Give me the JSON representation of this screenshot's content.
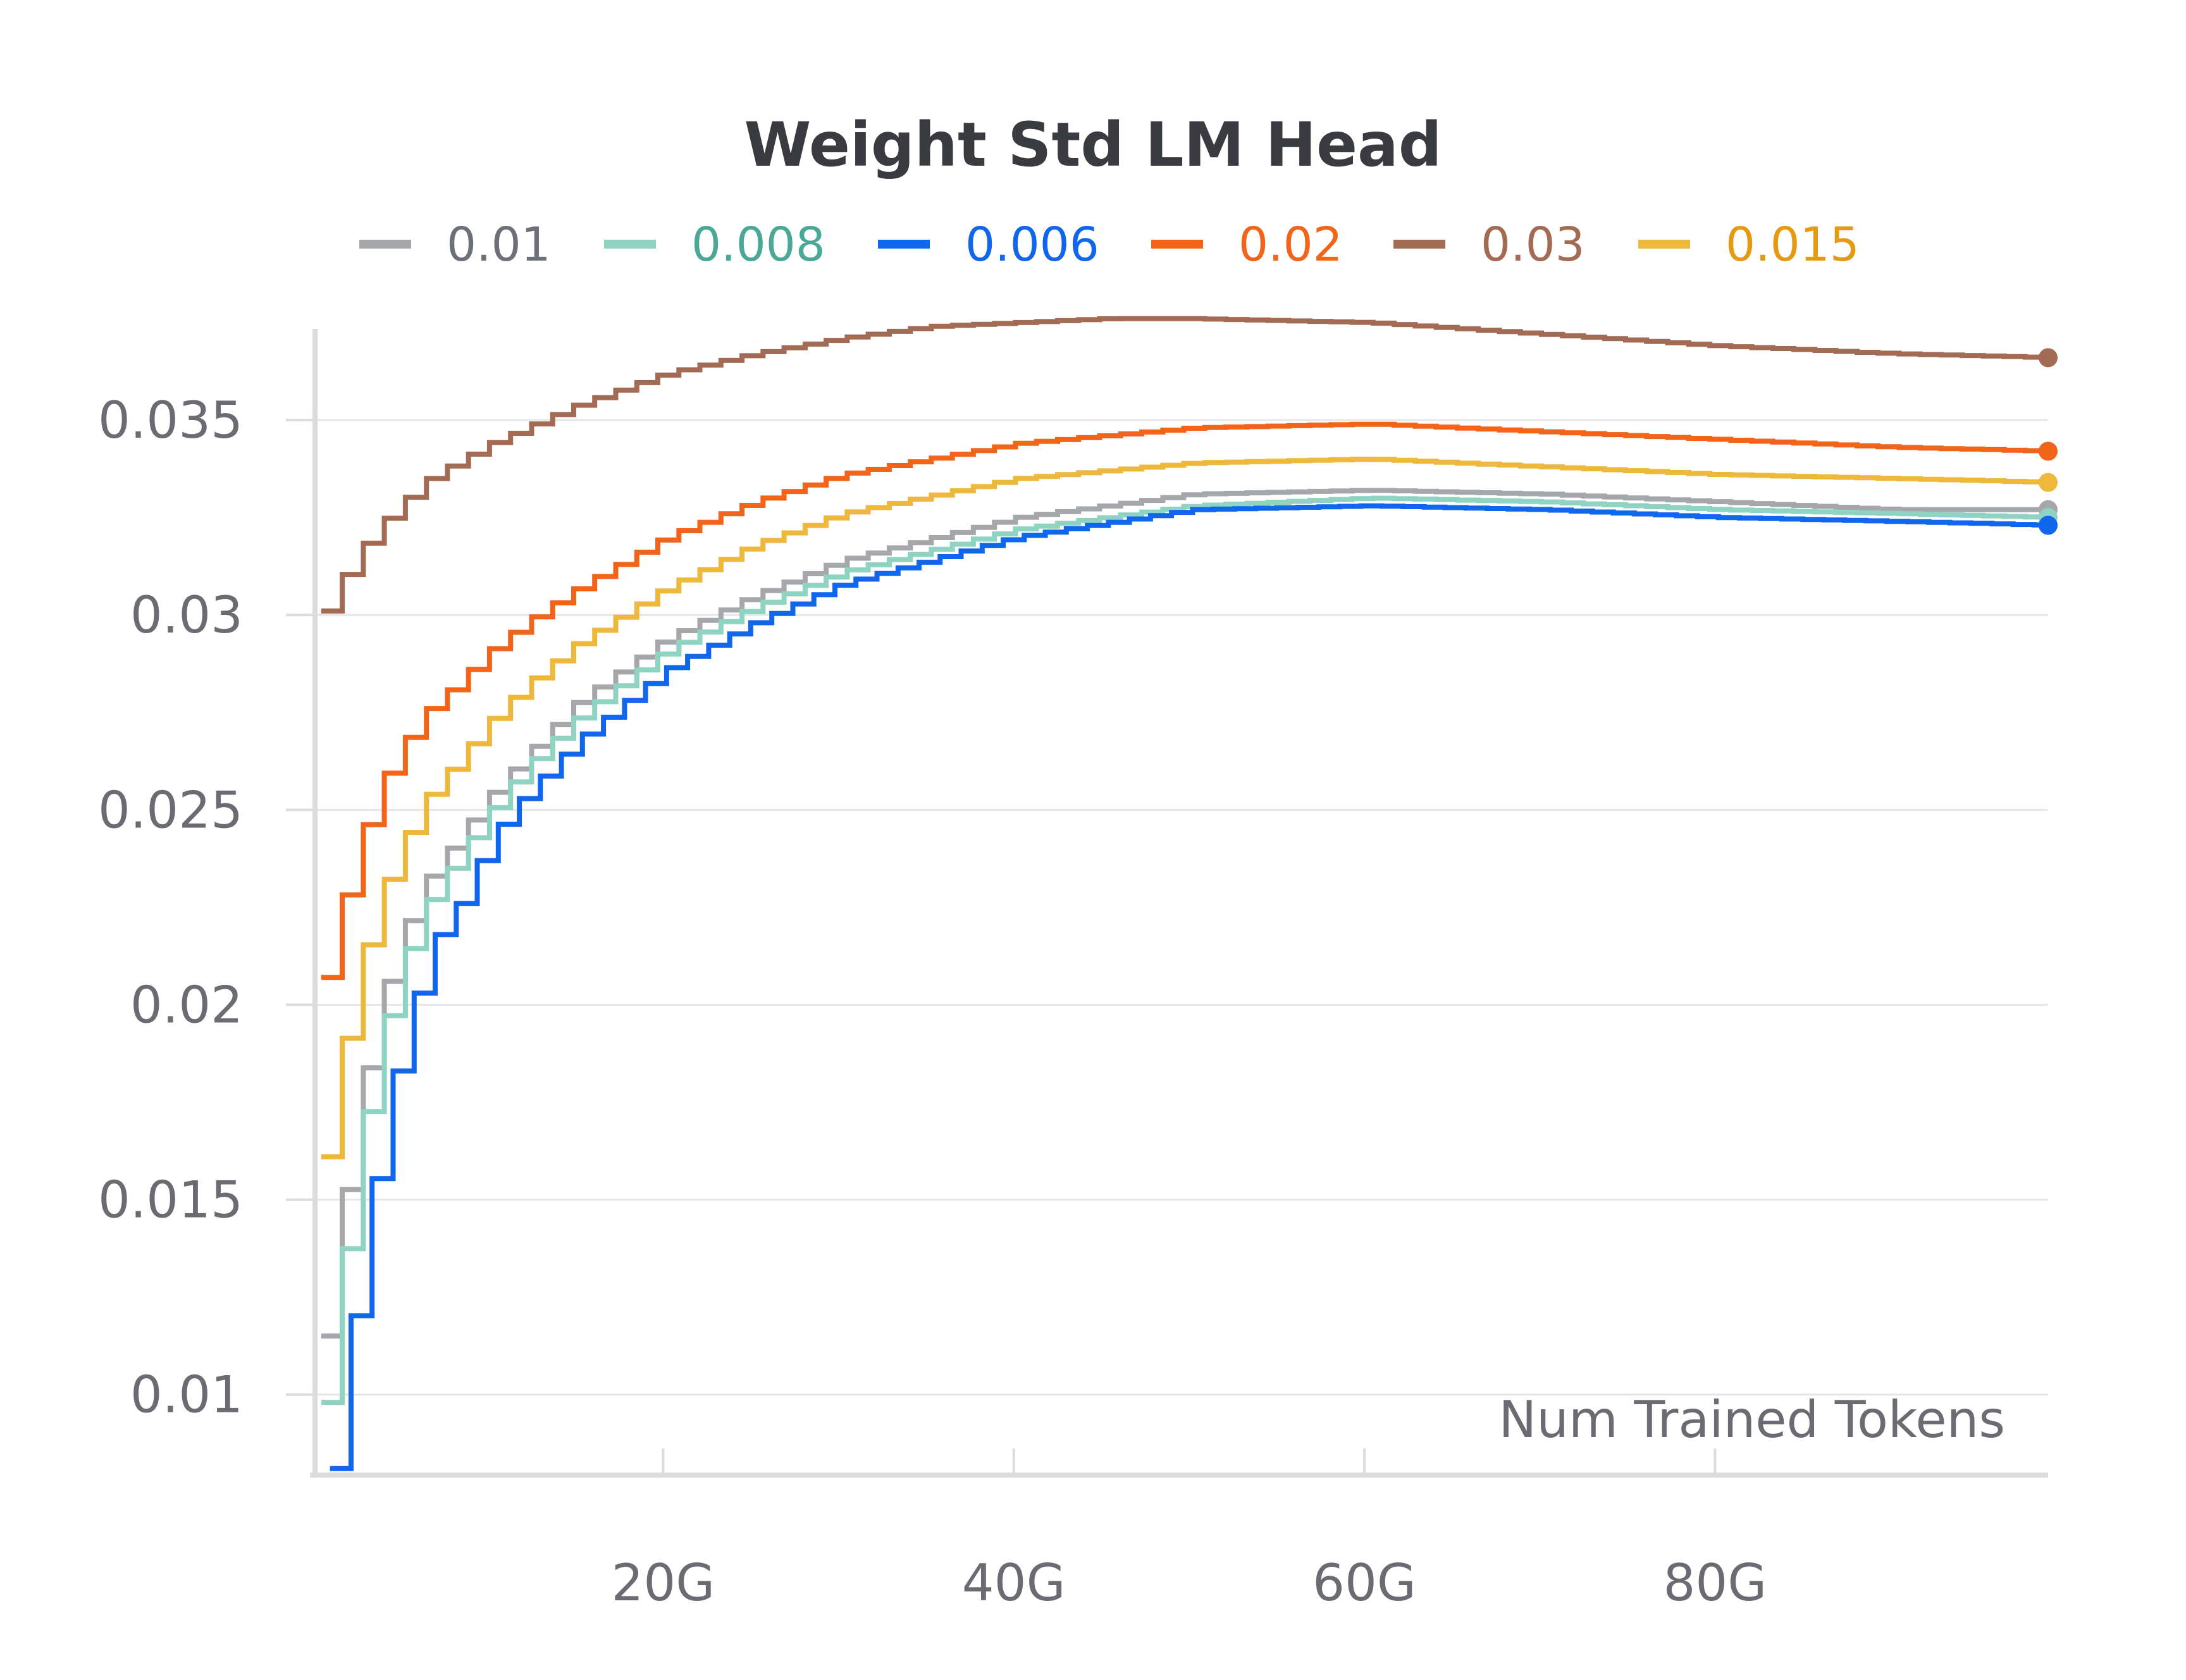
{
  "chart_data": {
    "type": "line",
    "title": "Weight Std LM Head",
    "xlabel": "Num Trained Tokens",
    "ylabel": "",
    "xlim": [
      0,
      99
    ],
    "ylim": [
      0.008,
      0.0375
    ],
    "x_ticks": [
      {
        "value": 20,
        "label": "20G"
      },
      {
        "value": 40,
        "label": "40G"
      },
      {
        "value": 60,
        "label": "60G"
      },
      {
        "value": 80,
        "label": "80G"
      }
    ],
    "y_ticks": [
      {
        "value": 0.01,
        "label": "0.01"
      },
      {
        "value": 0.015,
        "label": "0.015"
      },
      {
        "value": 0.02,
        "label": "0.02"
      },
      {
        "value": 0.025,
        "label": "0.025"
      },
      {
        "value": 0.03,
        "label": "0.03"
      },
      {
        "value": 0.035,
        "label": "0.035"
      }
    ],
    "grid": true,
    "legend_position": "top",
    "line_style": "step",
    "series": [
      {
        "name": "0.01",
        "color": "#a5a7aa",
        "label_color": "#6e7079",
        "x": [
          0.5,
          1.5,
          2.5,
          3.5,
          4.5,
          5.5,
          6.5,
          8,
          10,
          12,
          15,
          20,
          25,
          30,
          40,
          50,
          60,
          70,
          80,
          90,
          99
        ],
        "y": [
          0.0115,
          0.0147,
          0.0175,
          0.0197,
          0.0212,
          0.0224,
          0.0233,
          0.0242,
          0.0254,
          0.0264,
          0.0278,
          0.0294,
          0.0305,
          0.0314,
          0.0325,
          0.0331,
          0.0332,
          0.0331,
          0.0329,
          0.0327,
          0.0327
        ]
      },
      {
        "name": "0.008",
        "color": "#8fd3c3",
        "label_color": "#4aa896",
        "x": [
          0.5,
          1.5,
          2.5,
          3.5,
          4.5,
          5.5,
          6.5,
          8,
          10,
          12,
          15,
          20,
          25,
          30,
          40,
          50,
          60,
          70,
          80,
          90,
          99
        ],
        "y": [
          0.0098,
          0.0131,
          0.0163,
          0.0187,
          0.0204,
          0.0217,
          0.0227,
          0.0237,
          0.025,
          0.0261,
          0.0274,
          0.0291,
          0.0302,
          0.0311,
          0.0322,
          0.0328,
          0.033,
          0.0329,
          0.0327,
          0.0326,
          0.0325
        ]
      },
      {
        "name": "0.006",
        "color": "#1166ee",
        "label_color": "#1166ee",
        "x": [
          1,
          2,
          3,
          4,
          5,
          6,
          7,
          8.5,
          10,
          12,
          15,
          20,
          25,
          30,
          40,
          50,
          60,
          70,
          80,
          90,
          99
        ],
        "y": [
          0.0081,
          0.0114,
          0.0145,
          0.0171,
          0.0191,
          0.0206,
          0.0218,
          0.0228,
          0.0243,
          0.0254,
          0.0268,
          0.0286,
          0.0298,
          0.0308,
          0.032,
          0.0327,
          0.0328,
          0.0327,
          0.0325,
          0.0324,
          0.0323
        ]
      },
      {
        "name": "0.02",
        "color": "#f26419",
        "label_color": "#f26419",
        "x": [
          0.5,
          1.5,
          2.5,
          3.5,
          4.5,
          5.5,
          6.5,
          8,
          10,
          12,
          15,
          20,
          25,
          30,
          40,
          50,
          60,
          70,
          80,
          90,
          99
        ],
        "y": [
          0.0207,
          0.0225,
          0.0241,
          0.0254,
          0.0263,
          0.027,
          0.0276,
          0.0282,
          0.0291,
          0.0298,
          0.0307,
          0.032,
          0.0329,
          0.0336,
          0.0344,
          0.0348,
          0.0349,
          0.0347,
          0.0345,
          0.0343,
          0.0342
        ]
      },
      {
        "name": "0.03",
        "color": "#a36a54",
        "label_color": "#a36a54",
        "x": [
          0.5,
          1.5,
          2.5,
          3.5,
          5,
          6.5,
          8,
          10,
          12,
          15,
          20,
          25,
          30,
          35,
          40,
          45,
          50,
          60,
          70,
          80,
          90,
          99
        ],
        "y": [
          0.0301,
          0.0309,
          0.0316,
          0.0322,
          0.0329,
          0.0335,
          0.0339,
          0.0344,
          0.0348,
          0.0354,
          0.0362,
          0.0367,
          0.0371,
          0.0374,
          0.0375,
          0.0376,
          0.0376,
          0.0375,
          0.0372,
          0.0369,
          0.0367,
          0.0366
        ]
      },
      {
        "name": "0.015",
        "color": "#eeb83c",
        "label_color": "#e69a10",
        "x": [
          0.5,
          1.5,
          2.5,
          3.5,
          4.5,
          5.5,
          6.5,
          8,
          10,
          12,
          15,
          20,
          25,
          30,
          40,
          50,
          60,
          70,
          80,
          90,
          99
        ],
        "y": [
          0.0161,
          0.0187,
          0.0209,
          0.0225,
          0.0237,
          0.0246,
          0.0254,
          0.0262,
          0.0273,
          0.0282,
          0.0293,
          0.0307,
          0.0318,
          0.0326,
          0.0335,
          0.0339,
          0.034,
          0.0338,
          0.0336,
          0.0335,
          0.0334
        ]
      }
    ]
  }
}
